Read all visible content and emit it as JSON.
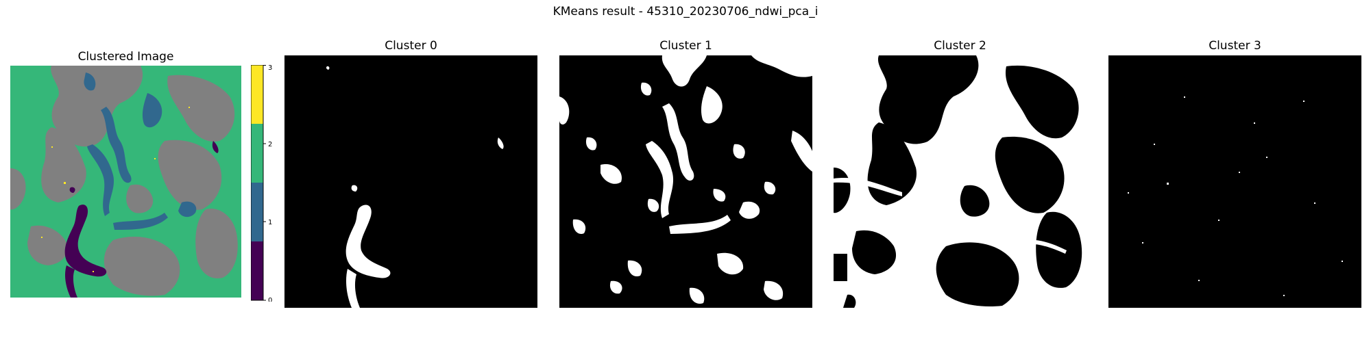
{
  "chart_data": {
    "type": "heatmap",
    "title": "KMeans result - 45310_20230706_ndwi_pca_i",
    "colors": {
      "cluster_0": "#440154",
      "cluster_1": "#31688e",
      "cluster_2": "#35b779",
      "cluster_3": "#fde725",
      "unclassified_gray": "#808080",
      "mask_on": "#ffffff",
      "mask_off": "#000000"
    },
    "panels": [
      {
        "title": "Clustered Image",
        "kind": "clustered"
      },
      {
        "title": "Cluster 0",
        "kind": "mask",
        "cluster": 0
      },
      {
        "title": "Cluster 1",
        "kind": "mask",
        "cluster": 1
      },
      {
        "title": "Cluster 2",
        "kind": "mask",
        "cluster": 2
      },
      {
        "title": "Cluster 3",
        "kind": "mask",
        "cluster": 3
      }
    ],
    "colorbar": {
      "ticks": [
        "0",
        "1",
        "2",
        "3"
      ],
      "range": [
        0,
        3
      ],
      "colormap": "viridis (discrete, 4 levels)"
    }
  }
}
